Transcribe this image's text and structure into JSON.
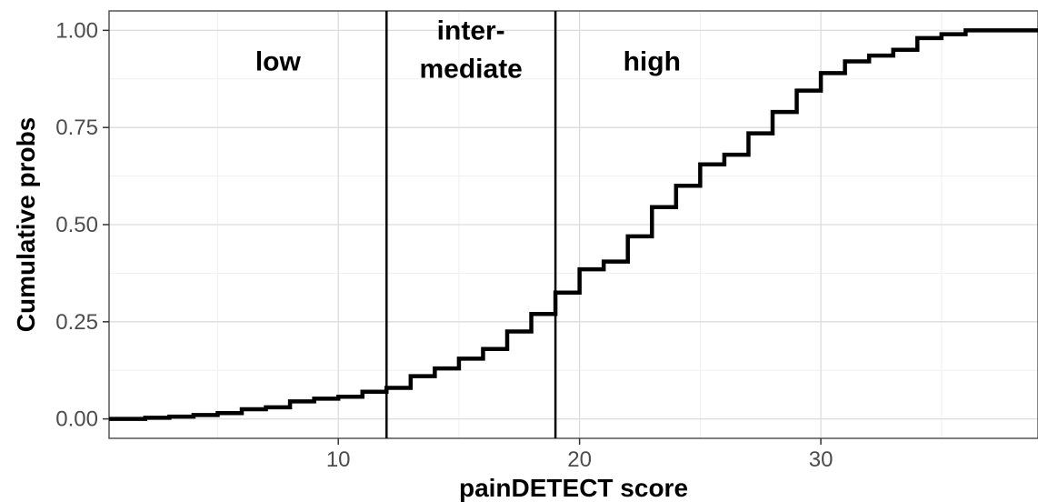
{
  "chart_data": {
    "type": "line",
    "step": true,
    "xlabel": "painDETECT score",
    "ylabel": "Cumulative probs",
    "xlim": [
      0.5,
      39
    ],
    "ylim": [
      -0.05,
      1.05
    ],
    "xticks": [
      10,
      20,
      30
    ],
    "xtick_labels": [
      "10",
      "20",
      "30"
    ],
    "yticks": [
      0,
      0.25,
      0.5,
      0.75,
      1
    ],
    "ytick_labels": [
      "0.00",
      "0.25",
      "0.50",
      "0.75",
      "1.00"
    ],
    "grid": true,
    "series": [
      {
        "x": [
          0.5,
          1,
          2,
          3,
          4,
          5,
          6,
          7,
          8,
          9,
          10,
          11,
          12,
          13,
          14,
          15,
          16,
          17,
          18,
          19,
          20,
          21,
          22,
          23,
          24,
          25,
          26,
          27,
          28,
          29,
          30,
          31,
          32,
          33,
          34,
          35,
          36,
          37,
          38,
          39
        ],
        "y": [
          0.0,
          0.0,
          0.003,
          0.006,
          0.01,
          0.015,
          0.025,
          0.03,
          0.045,
          0.052,
          0.057,
          0.07,
          0.08,
          0.11,
          0.13,
          0.155,
          0.18,
          0.225,
          0.27,
          0.325,
          0.385,
          0.405,
          0.47,
          0.545,
          0.6,
          0.655,
          0.68,
          0.735,
          0.79,
          0.845,
          0.89,
          0.92,
          0.935,
          0.95,
          0.98,
          0.99,
          1.0,
          1.0,
          1.0,
          1.0
        ]
      }
    ],
    "vlines": [
      12,
      19
    ],
    "color": "#000000",
    "region_labels": [
      {
        "text": "low",
        "x": 7.5,
        "y": 0.92
      },
      {
        "lines": [
          "inter-",
          "mediate"
        ],
        "x": 15.5,
        "y": 1.0
      },
      {
        "text": "high",
        "x": 23,
        "y": 0.92
      }
    ]
  }
}
